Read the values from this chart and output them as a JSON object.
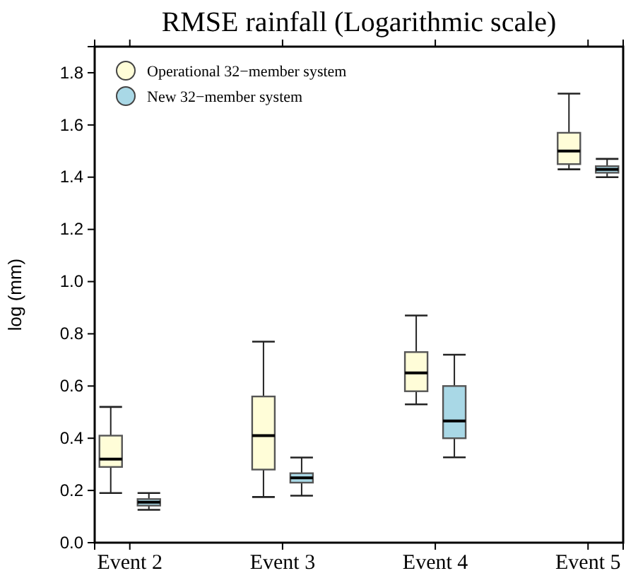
{
  "chart_data": {
    "type": "box",
    "title": "RMSE rainfall (Logarithmic scale)",
    "ylabel": "log (mm)",
    "categories": [
      "Event 2",
      "Event 3",
      "Event 4",
      "Event 5"
    ],
    "ylim": [
      0,
      1.9
    ],
    "yticks": [
      {
        "value": 0,
        "label": "0.0"
      },
      {
        "value": 0.2,
        "label": "0.2"
      },
      {
        "value": 0.4,
        "label": "0.4"
      },
      {
        "value": 0.6,
        "label": "0.6"
      },
      {
        "value": 0.8,
        "label": "0.8"
      },
      {
        "value": 1,
        "label": "1.0"
      },
      {
        "value": 1.2,
        "label": "1.2"
      },
      {
        "value": 1.4,
        "label": "1.4"
      },
      {
        "value": 1.6,
        "label": "1.6"
      },
      {
        "value": 1.8,
        "label": "1.8"
      }
    ],
    "grid": false,
    "legend": "top left",
    "series": [
      {
        "name": "Operational 32−member system",
        "color": "#fffdd8",
        "boxes": [
          {
            "low": 0.19,
            "q1": 0.29,
            "median": 0.32,
            "q3": 0.41,
            "high": 0.52
          },
          {
            "low": 0.175,
            "q1": 0.28,
            "median": 0.41,
            "q3": 0.56,
            "high": 0.77
          },
          {
            "low": 0.53,
            "q1": 0.58,
            "median": 0.65,
            "q3": 0.73,
            "high": 0.87
          },
          {
            "low": 1.43,
            "q1": 1.45,
            "median": 1.5,
            "q3": 1.57,
            "high": 1.72
          }
        ]
      },
      {
        "name": "New 32−member system",
        "color": "#a9d8e6",
        "boxes": [
          {
            "low": 0.126,
            "q1": 0.142,
            "median": 0.155,
            "q3": 0.167,
            "high": 0.19
          },
          {
            "low": 0.18,
            "q1": 0.23,
            "median": 0.248,
            "q3": 0.266,
            "high": 0.326
          },
          {
            "low": 0.327,
            "q1": 0.4,
            "median": 0.466,
            "q3": 0.6,
            "high": 0.72
          },
          {
            "low": 1.4,
            "q1": 1.417,
            "median": 1.43,
            "q3": 1.442,
            "high": 1.47
          }
        ]
      }
    ]
  }
}
